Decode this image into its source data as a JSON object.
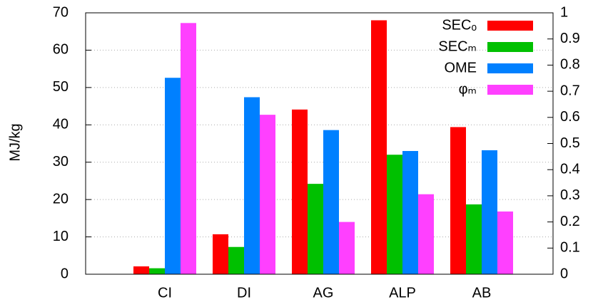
{
  "chart_data": {
    "type": "bar",
    "y_label": "MJ/kg",
    "categories": [
      "CI",
      "DI",
      "AG",
      "ALP",
      "AB"
    ],
    "series": [
      {
        "name": "SECₒ",
        "color": "#ff0000",
        "values": [
          2.1,
          10.7,
          44.1,
          68,
          39.4
        ]
      },
      {
        "name": "SECₘ",
        "color": "#00c000",
        "values": [
          1.6,
          7.3,
          24.2,
          32,
          18.7
        ]
      },
      {
        "name": "OME",
        "color": "#0080ff",
        "values": [
          52.6,
          47.4,
          38.6,
          33,
          33.2
        ]
      },
      {
        "name": "φₘ",
        "color": "#ff40ff",
        "axis": "y2",
        "values": [
          0.961,
          0.61,
          0.2,
          0.306,
          0.24
        ]
      }
    ],
    "ylim": [
      0,
      70
    ],
    "yticks": [
      0,
      10,
      20,
      30,
      40,
      50,
      60,
      70
    ],
    "y2lim": [
      0,
      1
    ],
    "y2ticks": [
      0,
      0.1,
      0.2,
      0.3,
      0.4,
      0.5,
      0.6,
      0.7,
      0.8,
      0.9,
      1
    ],
    "grid": true,
    "legend": "top-right"
  }
}
